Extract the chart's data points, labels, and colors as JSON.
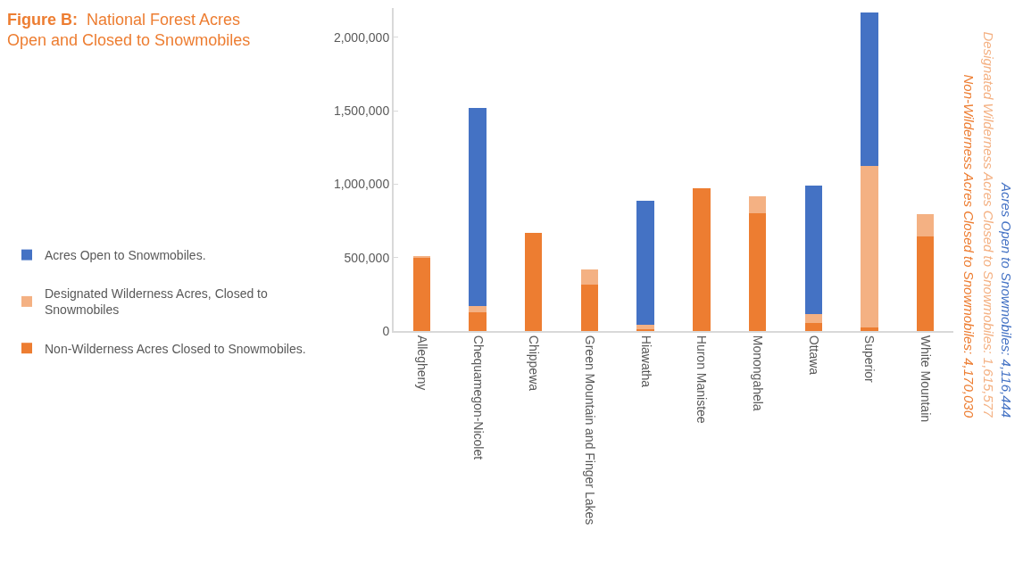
{
  "chart_data": {
    "type": "bar",
    "title": "Figure B:  National Forest Acres Open and Closed to Snowmobiles",
    "categories": [
      "Allegheny",
      "Chequamegon-Nicolet",
      "Chippewa",
      "Green Mountain and Finger Lakes",
      "Hiawatha",
      "Huron Manistee",
      "Monongahela",
      "Ottawa",
      "Superior",
      "White Mountain"
    ],
    "stacked": true,
    "series": [
      {
        "name": "Non-Wilderness Acres Closed to Snowmobiles.",
        "color": "#ed7d31",
        "values": [
          500000,
          125000,
          670000,
          315000,
          10000,
          975000,
          800000,
          55000,
          25000,
          645000
        ]
      },
      {
        "name": "Designated Wilderness Acres, Closed to Snowmobiles",
        "color": "#f4b183",
        "values": [
          10000,
          45000,
          null,
          105000,
          35000,
          null,
          115000,
          60000,
          1100000,
          150000
        ]
      },
      {
        "name": "Acres Open to Snowmobiles.",
        "color": "#4472c4",
        "values": [
          null,
          1350000,
          null,
          null,
          845000,
          null,
          null,
          875000,
          1045000,
          null
        ]
      }
    ],
    "ylim": [
      0,
      2200000
    ],
    "yticks": [
      {
        "value": 0,
        "label": "0"
      },
      {
        "value": 500000,
        "label": "500,000"
      },
      {
        "value": 1000000,
        "label": "1,000,000"
      },
      {
        "value": 1500000,
        "label": "1,500,000"
      },
      {
        "value": 2000000,
        "label": "2,000,000"
      }
    ],
    "grid": false,
    "legend": "left",
    "annotations": [
      "Non-Wilderness Acres Closed to Snowmobiles: 4,170,030",
      "Designated Wilderness Acres Closed to Snowmobiles: 1,615,577",
      "Acres Open to Snowmobiles: 4,116,444"
    ]
  }
}
